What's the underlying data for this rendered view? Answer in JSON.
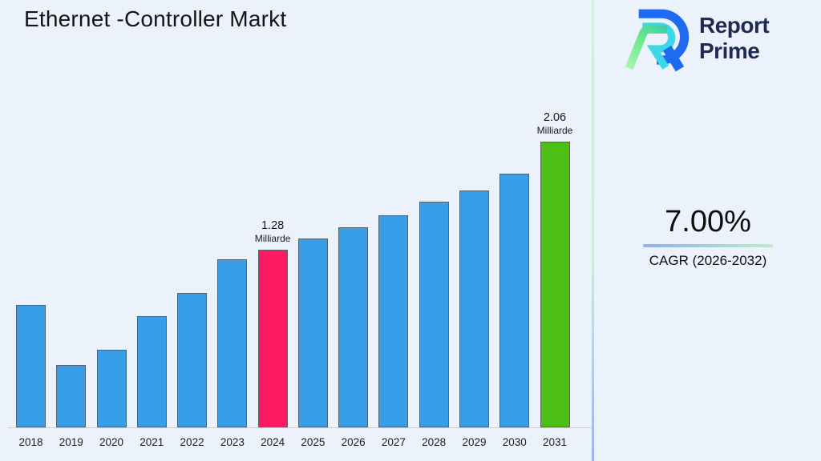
{
  "page": {
    "background": "#ECF2FB"
  },
  "header": {
    "title": "Ethernet -Controller Markt"
  },
  "logo": {
    "icon": "report-prime-logo",
    "line1": "Report",
    "line2": "Prime",
    "text_color": "#1D2B52",
    "icon_colors": {
      "blue": "#1E6BF2",
      "cyan": "#3DD8E8",
      "green_light": "#A8F5B0",
      "green_teal": "#3ECFA6"
    }
  },
  "kpi": {
    "value": "7.00%",
    "label": "CAGR (2026-2032)",
    "underline_from": "#8FB0EE",
    "underline_to": "#BDEEC4"
  },
  "chart_data": {
    "type": "bar",
    "title": "Ethernet -Controller Markt",
    "categories": [
      "2018",
      "2019",
      "2020",
      "2021",
      "2022",
      "2023",
      "2024",
      "2025",
      "2026",
      "2027",
      "2028",
      "2029",
      "2030",
      "2031"
    ],
    "values": [
      0.88,
      0.45,
      0.56,
      0.8,
      0.97,
      1.21,
      1.28,
      1.36,
      1.44,
      1.53,
      1.63,
      1.71,
      1.83,
      2.06
    ],
    "unit": "Milliarde",
    "colors": [
      "#379FE8",
      "#379FE8",
      "#379FE8",
      "#379FE8",
      "#379FE8",
      "#379FE8",
      "#FC1A62",
      "#379FE8",
      "#379FE8",
      "#379FE8",
      "#379FE8",
      "#379FE8",
      "#379FE8",
      "#4CBE14"
    ],
    "annotations": [
      {
        "category": "2024",
        "value": "1.28",
        "unit": "Milliarde"
      },
      {
        "category": "2031",
        "value": "2.06",
        "unit": "Milliarde"
      }
    ],
    "xlabel": "",
    "ylabel": "",
    "ylim": [
      0,
      2.2
    ],
    "grid": false,
    "legend": "none",
    "axis_line_color": "#CFCFCF"
  }
}
